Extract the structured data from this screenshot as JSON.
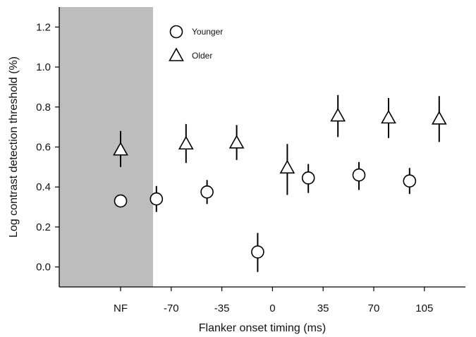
{
  "chart_data": {
    "type": "scatter",
    "xlabel": "Flanker onset timing (ms)",
    "ylabel": "Log contrast detection threshold (%)",
    "categories": [
      "NF",
      "-70",
      "-35",
      "0",
      "35",
      "70",
      "105"
    ],
    "ylim": [
      -0.1,
      1.3
    ],
    "yticks": [
      "0.0",
      "0.2",
      "0.4",
      "0.6",
      "0.8",
      "1.0",
      "1.2"
    ],
    "grid": false,
    "shaded_region": {
      "category": "NF",
      "color": "#bdbdbd"
    },
    "legend": {
      "placement": "top-left-inside"
    },
    "series": [
      {
        "name": "Younger",
        "marker": "circle",
        "values": [
          0.33,
          0.34,
          0.375,
          0.075,
          0.445,
          0.46,
          0.43
        ],
        "error_low": [
          0.33,
          0.275,
          0.315,
          -0.025,
          0.37,
          0.385,
          0.365
        ],
        "error_high": [
          0.33,
          0.405,
          0.435,
          0.17,
          0.515,
          0.525,
          0.495
        ]
      },
      {
        "name": "Older",
        "marker": "triangle",
        "values": [
          0.585,
          0.615,
          0.62,
          0.495,
          0.755,
          0.745,
          0.74
        ],
        "error_low": [
          0.5,
          0.52,
          0.535,
          0.36,
          0.65,
          0.645,
          0.625
        ],
        "error_high": [
          0.68,
          0.715,
          0.71,
          0.615,
          0.86,
          0.845,
          0.855
        ]
      }
    ]
  }
}
